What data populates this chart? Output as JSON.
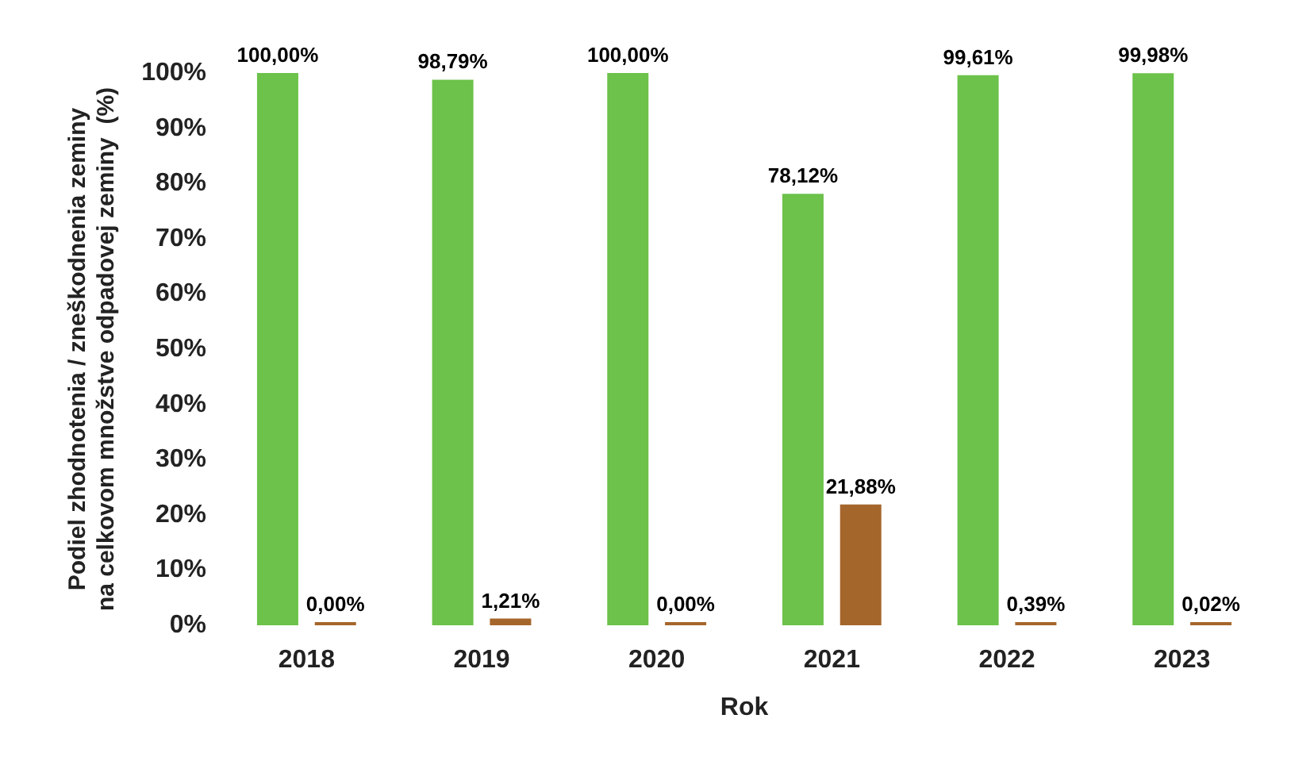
{
  "chart_data": {
    "type": "bar",
    "xlabel": "Rok",
    "ylabel": "Podiel zhodnotenia / zneškodnenia zeminy\nna celkovom množstve odpadovej zeminy  (%)",
    "categories": [
      "2018",
      "2019",
      "2020",
      "2021",
      "2022",
      "2023"
    ],
    "series": [
      {
        "color": "#6cc24a",
        "values": [
          100,
          98.79,
          100,
          78.12,
          99.61,
          99.98
        ],
        "value_labels": [
          "100,00%",
          "98,79%",
          "100,00%",
          "78,12%",
          "99,61%",
          "99,98%"
        ]
      },
      {
        "color": "#a5662c",
        "values": [
          0,
          1.21,
          0,
          21.88,
          0.39,
          0.02
        ],
        "value_labels": [
          "0,00%",
          "1,21%",
          "0,00%",
          "21,88%",
          "0,39%",
          "0,02%"
        ]
      }
    ],
    "ylim": [
      0,
      100
    ],
    "yticks": [
      {
        "value": 0,
        "label": "0%"
      },
      {
        "value": 10,
        "label": "10%"
      },
      {
        "value": 20,
        "label": "20%"
      },
      {
        "value": 30,
        "label": "30%"
      },
      {
        "value": 40,
        "label": "40%"
      },
      {
        "value": 50,
        "label": "50%"
      },
      {
        "value": 60,
        "label": "60%"
      },
      {
        "value": 70,
        "label": "70%"
      },
      {
        "value": 80,
        "label": "80%"
      },
      {
        "value": 90,
        "label": "90%"
      },
      {
        "value": 100,
        "label": "100%"
      }
    ]
  }
}
